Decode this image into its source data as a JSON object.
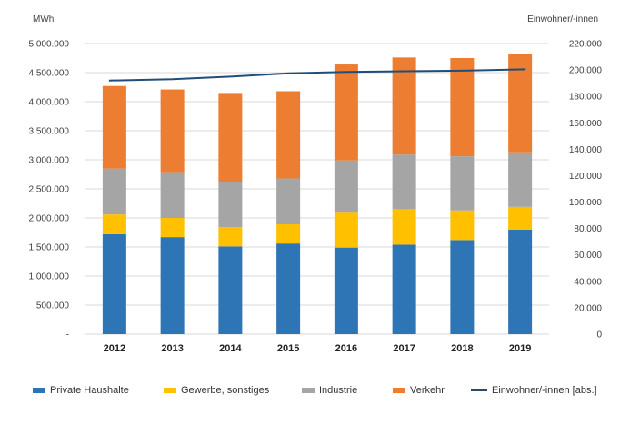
{
  "chart_data": {
    "type": "bar",
    "stacked": true,
    "y_unit_left": "MWh",
    "y_unit_right": "Einwohner/-innen",
    "categories": [
      "2012",
      "2013",
      "2014",
      "2015",
      "2016",
      "2017",
      "2018",
      "2019"
    ],
    "ylim_left": [
      0,
      5000000
    ],
    "ylim_right": [
      0,
      220000
    ],
    "yticks_left": [
      "-",
      "500.000",
      "1.000.000",
      "1.500.000",
      "2.000.000",
      "2.500.000",
      "3.000.000",
      "3.500.000",
      "4.000.000",
      "4.500.000",
      "5.000.000"
    ],
    "yticks_right": [
      "0",
      "20.000",
      "40.000",
      "60.000",
      "80.000",
      "100.000",
      "120.000",
      "140.000",
      "160.000",
      "180.000",
      "200.000",
      "220.000"
    ],
    "series": [
      {
        "name": "Private Haushalte",
        "color": "#2e75b6",
        "values": [
          1720000,
          1670000,
          1510000,
          1560000,
          1490000,
          1540000,
          1620000,
          1800000
        ]
      },
      {
        "name": "Gewerbe, sonstiges",
        "color": "#ffc000",
        "values": [
          340000,
          330000,
          330000,
          330000,
          600000,
          610000,
          510000,
          390000
        ]
      },
      {
        "name": "Industrie",
        "color": "#a5a5a5",
        "values": [
          790000,
          790000,
          780000,
          790000,
          900000,
          940000,
          930000,
          940000
        ]
      },
      {
        "name": "Verkehr",
        "color": "#ed7d31",
        "values": [
          1420000,
          1420000,
          1530000,
          1500000,
          1650000,
          1670000,
          1690000,
          1690000
        ]
      }
    ],
    "line_series": {
      "name": "Einwohner/-innen [abs.]",
      "color": "#1f4e79",
      "values": [
        192000,
        193000,
        195000,
        197500,
        198500,
        199000,
        199500,
        200500
      ]
    },
    "grid": true,
    "legend": "bottom"
  }
}
